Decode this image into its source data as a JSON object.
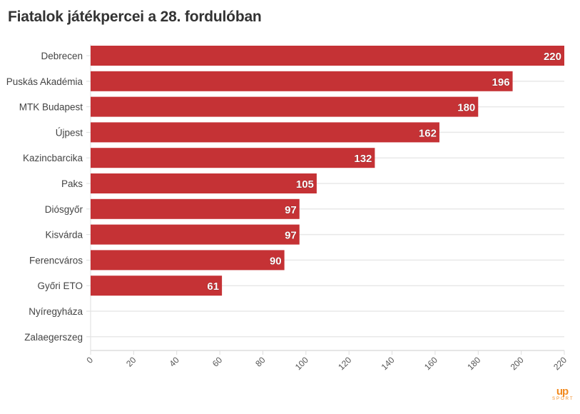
{
  "chart_data": {
    "type": "bar",
    "orientation": "horizontal",
    "title": "Fiatalok játékpercei a 28. fordulóban",
    "categories": [
      "Debrecen",
      "Puskás Akadémia",
      "MTK Budapest",
      "Újpest",
      "Kazincbarcika",
      "Paks",
      "Diósgyőr",
      "Kisvárda",
      "Ferencváros",
      "Győri ETO",
      "Nyíregyháza",
      "Zalaegerszeg"
    ],
    "values": [
      220,
      196,
      180,
      162,
      132,
      105,
      97,
      97,
      90,
      61,
      0,
      0
    ],
    "data_labels": [
      "220",
      "196",
      "180",
      "162",
      "132",
      "105",
      "97",
      "97",
      "90",
      "61",
      "",
      ""
    ],
    "xlim": [
      0,
      220
    ],
    "xticks": [
      0,
      20,
      40,
      60,
      80,
      100,
      120,
      140,
      160,
      180,
      200,
      220
    ],
    "xlabel": "",
    "ylabel": "",
    "grid": true,
    "bar_color": "#c53235"
  },
  "logo": {
    "text": "up",
    "sub": "SPORT"
  }
}
